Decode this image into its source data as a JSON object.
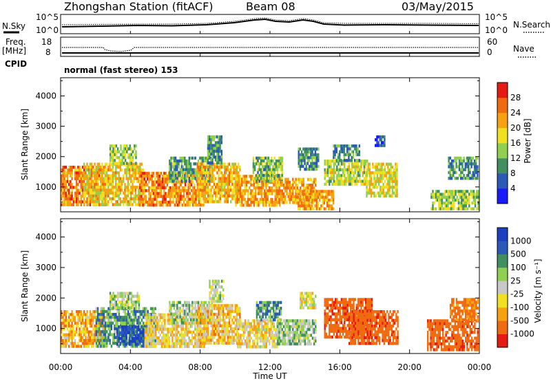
{
  "header": {
    "station": "Zhongshan Station (fitACF)",
    "beam": "Beam 08",
    "date": "03/May/2015"
  },
  "summary": {
    "nsky_label": "N.Sky",
    "nsky_tick_hi": "10^5",
    "nsky_tick_lo": "10^0",
    "nsearch_label": "N.Search",
    "nsearch_tick_hi": "10^5",
    "nsearch_tick_lo": "10^0",
    "freq_label_1": "Freq.",
    "freq_label_2": "[MHz]",
    "freq_tick_hi": "18",
    "freq_tick_lo": "8",
    "nave_label": "Nave",
    "nave_tick_hi": "60",
    "nave_tick_lo": "0",
    "cpid_label": "CPID",
    "cpid_text": "normal (fast stereo) 153"
  },
  "colors": {
    "power": [
      "#1a1aff",
      "#2b59b8",
      "#3f8f5f",
      "#90d050",
      "#f0e020",
      "#f7a010",
      "#f06a10",
      "#e61a10"
    ],
    "velocity": [
      "#e61a10",
      "#f06a10",
      "#f7a010",
      "#f0e020",
      "#c8c8c8",
      "#90d050",
      "#3f8f5f",
      "#2b59b8",
      "#1a3fc0"
    ]
  },
  "chart_data": [
    {
      "type": "heatmap",
      "panel": "power",
      "ylabel": "Slant Range [km]",
      "xlabel": "",
      "y_ticks": [
        "1000",
        "2000",
        "3000",
        "4000"
      ],
      "y_tick_values": [
        1000,
        2000,
        3000,
        4000
      ],
      "ylim": [
        180,
        4600
      ],
      "xlim_hours": [
        0,
        24
      ],
      "colorbar_label": "Power [dB]",
      "colorbar_ticks": [
        "4",
        "8",
        "12",
        "16",
        "20",
        "24",
        "28"
      ],
      "colorbar_range": [
        0,
        32
      ],
      "regions": [
        {
          "x0": 0.0,
          "x1": 2.6,
          "y0": 400,
          "y1": 1700,
          "level": 0.75
        },
        {
          "x0": 1.3,
          "x1": 4.8,
          "y0": 400,
          "y1": 1800,
          "level": 0.6
        },
        {
          "x0": 2.8,
          "x1": 4.3,
          "y0": 1800,
          "y1": 2400,
          "level": 0.45
        },
        {
          "x0": 4.5,
          "x1": 8.2,
          "y0": 400,
          "y1": 1500,
          "level": 0.75
        },
        {
          "x0": 6.2,
          "x1": 8.7,
          "y0": 1200,
          "y1": 2000,
          "level": 0.35
        },
        {
          "x0": 7.8,
          "x1": 10.3,
          "y0": 500,
          "y1": 1800,
          "level": 0.65
        },
        {
          "x0": 8.4,
          "x1": 9.2,
          "y0": 1800,
          "y1": 2700,
          "level": 0.3
        },
        {
          "x0": 10.0,
          "x1": 12.6,
          "y0": 400,
          "y1": 1400,
          "level": 0.7
        },
        {
          "x0": 11.0,
          "x1": 12.7,
          "y0": 1200,
          "y1": 2000,
          "level": 0.4
        },
        {
          "x0": 12.4,
          "x1": 14.6,
          "y0": 500,
          "y1": 1300,
          "level": 0.7
        },
        {
          "x0": 13.5,
          "x1": 15.6,
          "y0": 300,
          "y1": 900,
          "level": 0.7
        },
        {
          "x0": 13.6,
          "x1": 14.8,
          "y0": 1600,
          "y1": 2300,
          "level": 0.3
        },
        {
          "x0": 15.1,
          "x1": 17.6,
          "y0": 1100,
          "y1": 1900,
          "level": 0.5
        },
        {
          "x0": 15.6,
          "x1": 17.1,
          "y0": 1900,
          "y1": 2400,
          "level": 0.3
        },
        {
          "x0": 17.5,
          "x1": 19.3,
          "y0": 700,
          "y1": 1800,
          "level": 0.55
        },
        {
          "x0": 18.0,
          "x1": 18.6,
          "y0": 2400,
          "y1": 2700,
          "level": 0.2
        },
        {
          "x0": 21.2,
          "x1": 23.9,
          "y0": 300,
          "y1": 900,
          "level": 0.45
        },
        {
          "x0": 22.2,
          "x1": 23.9,
          "y0": 1300,
          "y1": 2000,
          "level": 0.3
        }
      ]
    },
    {
      "type": "heatmap",
      "panel": "velocity",
      "ylabel": "Slant Range [km]",
      "xlabel": "Time UT",
      "y_ticks": [
        "1000",
        "2000",
        "3000",
        "4000"
      ],
      "y_tick_values": [
        1000,
        2000,
        3000,
        4000
      ],
      "ylim": [
        180,
        4600
      ],
      "x_ticks": [
        "00:00",
        "04:00",
        "08:00",
        "12:00",
        "16:00",
        "20:00",
        "00:00"
      ],
      "x_tick_hours": [
        0,
        4,
        8,
        12,
        16,
        20,
        24
      ],
      "xlim_hours": [
        0,
        24
      ],
      "colorbar_label": "Velocity [m s⁻¹]",
      "colorbar_ticks": [
        "1000",
        "500",
        "100",
        "25",
        "-25",
        "-100",
        "-500",
        "-1000"
      ],
      "regions": [
        {
          "x0": 0.0,
          "x1": 2.6,
          "y0": 400,
          "y1": 1600,
          "level": 0.3
        },
        {
          "x0": 2.0,
          "x1": 5.4,
          "y0": 400,
          "y1": 1700,
          "level": 0.7
        },
        {
          "x0": 3.2,
          "x1": 4.8,
          "y0": 500,
          "y1": 1100,
          "level": 0.9
        },
        {
          "x0": 2.8,
          "x1": 4.5,
          "y0": 1700,
          "y1": 2200,
          "level": 0.55
        },
        {
          "x0": 4.8,
          "x1": 8.2,
          "y0": 400,
          "y1": 1500,
          "level": 0.4
        },
        {
          "x0": 6.2,
          "x1": 8.7,
          "y0": 1200,
          "y1": 1900,
          "level": 0.6
        },
        {
          "x0": 7.8,
          "x1": 10.3,
          "y0": 500,
          "y1": 1800,
          "level": 0.35
        },
        {
          "x0": 8.5,
          "x1": 9.3,
          "y0": 1900,
          "y1": 2600,
          "level": 0.55
        },
        {
          "x0": 10.1,
          "x1": 12.6,
          "y0": 400,
          "y1": 1300,
          "level": 0.4
        },
        {
          "x0": 11.2,
          "x1": 12.6,
          "y0": 1300,
          "y1": 1900,
          "level": 0.7
        },
        {
          "x0": 12.4,
          "x1": 14.6,
          "y0": 500,
          "y1": 1300,
          "level": 0.6
        },
        {
          "x0": 13.7,
          "x1": 14.6,
          "y0": 1700,
          "y1": 2200,
          "level": 0.45
        },
        {
          "x0": 15.1,
          "x1": 17.8,
          "y0": 700,
          "y1": 2000,
          "level": 0.15
        },
        {
          "x0": 16.5,
          "x1": 19.3,
          "y0": 500,
          "y1": 1600,
          "level": 0.15
        },
        {
          "x0": 21.0,
          "x1": 23.9,
          "y0": 350,
          "y1": 1300,
          "level": 0.15
        },
        {
          "x0": 22.3,
          "x1": 23.9,
          "y0": 1300,
          "y1": 2000,
          "level": 0.2
        }
      ]
    }
  ]
}
